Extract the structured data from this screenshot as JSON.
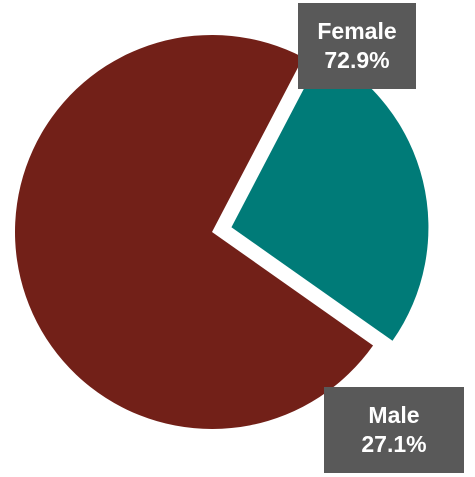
{
  "chart_data": {
    "type": "pie",
    "title": "",
    "slices": [
      {
        "label": "Female",
        "value": 72.9,
        "display": "72.9%",
        "color": "#722018",
        "exploded": false
      },
      {
        "label": "Male",
        "value": 27.1,
        "display": "27.1%",
        "color": "#007b78",
        "exploded": true
      }
    ],
    "legend": "none",
    "data_labels": "callout boxes",
    "label_box_color": "#595959",
    "label_text_color": "#ffffff"
  }
}
